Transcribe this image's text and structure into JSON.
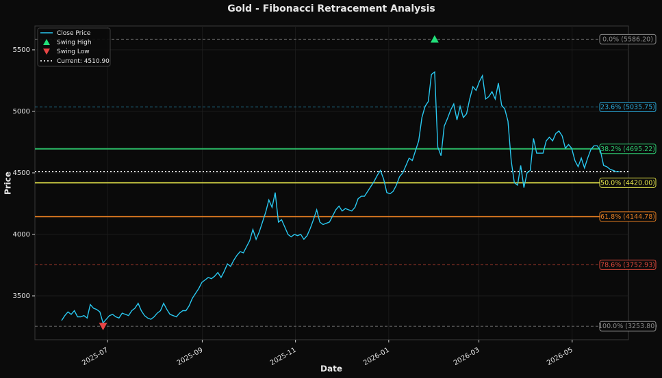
{
  "chart_data": {
    "type": "line",
    "title": "Gold - Fibonacci Retracement Analysis",
    "x_label": "Date",
    "y_label": "Price",
    "xlim": [
      "2025-06",
      "2026-06"
    ],
    "xticks": [
      "2025-07",
      "2025-09",
      "2025-11",
      "2026-01",
      "2026-03",
      "2026-05"
    ],
    "ylim": [
      3144,
      5694
    ],
    "yticks": [
      3500,
      4000,
      4500,
      5000,
      5500
    ],
    "grid": true,
    "legend": "upper left",
    "series": [
      {
        "name": "Close Price",
        "color": "#29c8f0",
        "values": [
          3300,
          3340,
          3370,
          3350,
          3380,
          3330,
          3330,
          3340,
          3320,
          3430,
          3400,
          3390,
          3370,
          3280,
          3310,
          3340,
          3350,
          3330,
          3320,
          3360,
          3350,
          3340,
          3380,
          3400,
          3440,
          3380,
          3340,
          3320,
          3310,
          3330,
          3360,
          3380,
          3440,
          3390,
          3350,
          3340,
          3330,
          3360,
          3380,
          3380,
          3420,
          3480,
          3520,
          3560,
          3610,
          3630,
          3650,
          3640,
          3660,
          3690,
          3650,
          3700,
          3760,
          3740,
          3790,
          3830,
          3860,
          3850,
          3900,
          3950,
          4040,
          3960,
          4020,
          4100,
          4180,
          4280,
          4220,
          4340,
          4100,
          4120,
          4060,
          4000,
          3980,
          4000,
          3990,
          4000,
          3960,
          3990,
          4050,
          4120,
          4200,
          4100,
          4080,
          4090,
          4100,
          4150,
          4200,
          4230,
          4190,
          4210,
          4200,
          4190,
          4220,
          4290,
          4310,
          4310,
          4350,
          4390,
          4430,
          4480,
          4520,
          4450,
          4340,
          4330,
          4350,
          4400,
          4470,
          4500,
          4560,
          4620,
          4600,
          4680,
          4760,
          4950,
          5040,
          5080,
          5300,
          5320,
          4710,
          4640,
          4880,
          4940,
          5010,
          5060,
          4930,
          5040,
          4950,
          4980,
          5100,
          5200,
          5170,
          5240,
          5290,
          5100,
          5120,
          5160,
          5100,
          5230,
          5050,
          5020,
          4920,
          4600,
          4420,
          4400,
          4560,
          4380,
          4500,
          4520,
          4780,
          4660,
          4660,
          4660,
          4760,
          4790,
          4760,
          4820,
          4840,
          4800,
          4700,
          4730,
          4700,
          4600,
          4550,
          4620,
          4540,
          4620,
          4690,
          4720,
          4720,
          4680,
          4560,
          4550,
          4530,
          4520,
          4510,
          4510.9
        ]
      }
    ],
    "swing_high": {
      "name": "Swing High",
      "color": "#22e07a",
      "value": 5586.2
    },
    "swing_low": {
      "name": "Swing Low",
      "color": "#e84545",
      "value": 3253.8
    },
    "current": {
      "name": "Current: 4510.90",
      "color": "#e8e8e8",
      "value": 4510.9
    },
    "levels": {
      "values": [
        5586.2,
        5035.75,
        4695.22,
        4420.0,
        4144.78,
        3752.93,
        3253.8
      ],
      "value_labels": [
        "0.0% (5586.20)",
        "23.6% (5035.75)",
        "38.2% (4695.22)",
        "50.0% (4420.00)",
        "61.8% (4144.78)",
        "78.6% (3752.93)",
        "100.0% (3253.80)"
      ],
      "colors": [
        "#8a8a8a",
        "#2aa6d6",
        "#2ecc71",
        "#e3e34a",
        "#e67e22",
        "#e04a3c",
        "#8a8a8a"
      ],
      "styles": [
        "dashed",
        "dashed",
        "solid",
        "solid",
        "solid",
        "dashed",
        "dashed"
      ]
    }
  }
}
